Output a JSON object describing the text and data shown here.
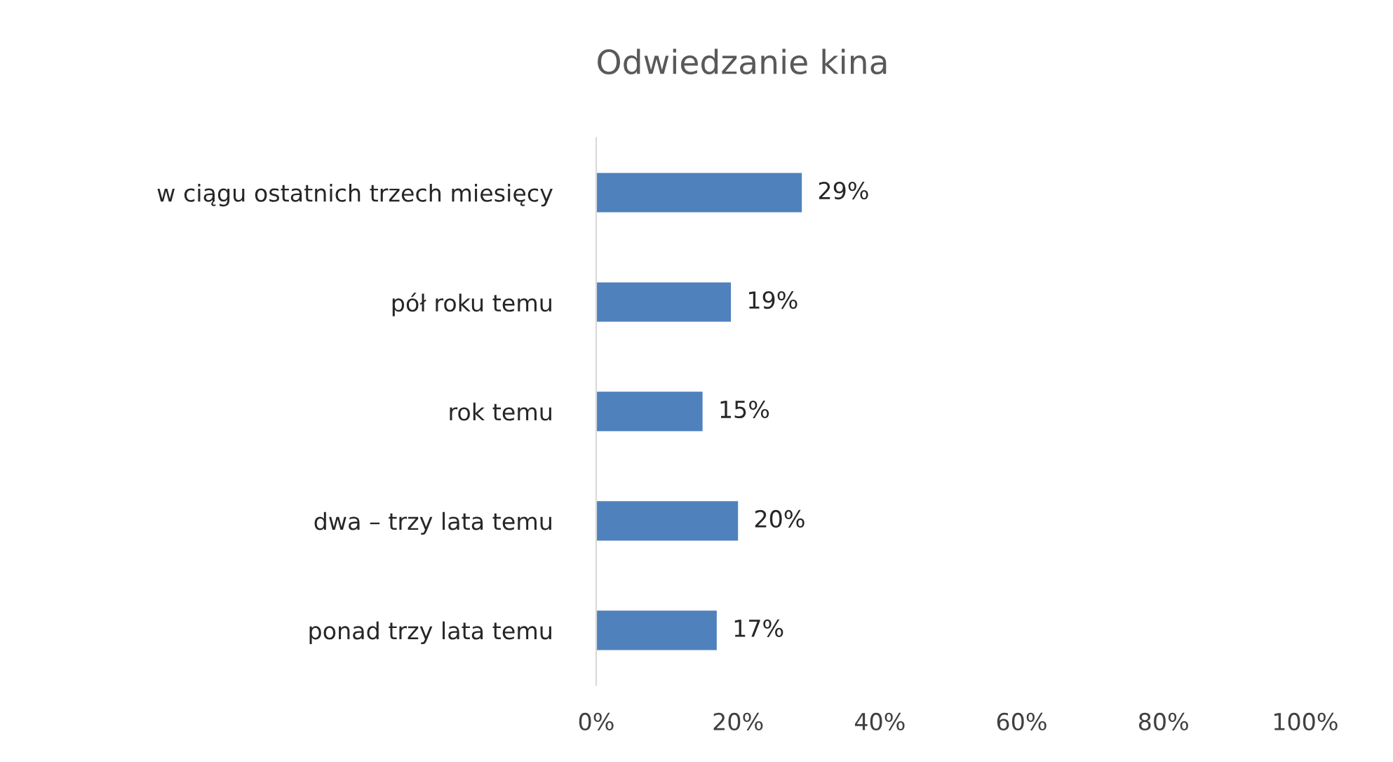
{
  "chart_data": {
    "type": "bar",
    "orientation": "horizontal",
    "title": "Odwiedzanie kina",
    "categories": [
      "w ciągu ostatnich trzech miesięcy",
      "pół roku temu",
      "rok temu",
      "dwa – trzy lata temu",
      "ponad trzy lata temu"
    ],
    "values": [
      29,
      19,
      15,
      20,
      17
    ],
    "value_labels": [
      "29%",
      "19%",
      "15%",
      "20%",
      "17%"
    ],
    "color": "#4f81bd",
    "xlim": [
      0,
      100
    ],
    "xticks": [
      {
        "value": 0,
        "label": "0%"
      },
      {
        "value": 20,
        "label": "20%"
      },
      {
        "value": 40,
        "label": "40%"
      },
      {
        "value": 60,
        "label": "60%"
      },
      {
        "value": 80,
        "label": "80%"
      },
      {
        "value": 100,
        "label": "100%"
      }
    ],
    "grid": false,
    "legend": false
  }
}
